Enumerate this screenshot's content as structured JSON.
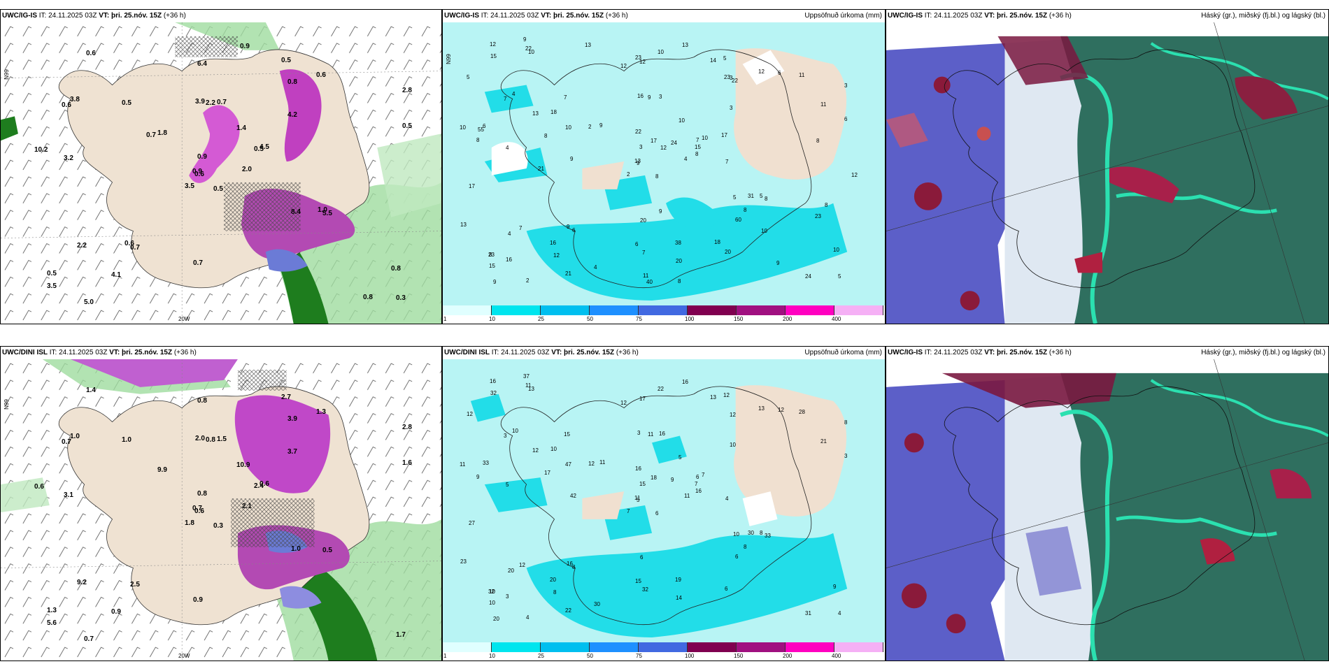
{
  "panels": {
    "top_left": {
      "model": "UWC/IG-IS",
      "it": " IT: 24.11.2025 03Z ",
      "vt": "VT: þri. 25.nóv. 15Z",
      "lead": " (+36 h)",
      "right": ""
    },
    "top_mid": {
      "model": "UWC/IG-IS",
      "it": " IT: 24.11.2025 03Z ",
      "vt": "VT: þri. 25.nóv. 15Z",
      "lead": " (+36 h)",
      "right": "Uppsöfnuð úrkoma (mm)"
    },
    "top_right": {
      "model": "UWC/IG-IS",
      "it": " IT: 24.11.2025 03Z ",
      "vt": "VT: þri. 25.nóv. 15Z",
      "lead": " (+36 h)",
      "right": "Háský (gr.), miðský (fj.bl.) og lágský (bl.)"
    },
    "bot_left": {
      "model": "UWC/DINI ISL",
      "it": " IT: 24.11.2025 03Z ",
      "vt": "VT: þri. 25.nóv. 15Z",
      "lead": " (+36 h)",
      "right": ""
    },
    "bot_mid": {
      "model": "UWC/DINI ISL",
      "it": " IT: 24.11.2025 03Z ",
      "vt": "VT: þri. 25.nóv. 15Z",
      "lead": " (+36 h)",
      "right": "Uppsöfnuð úrkoma (mm)"
    },
    "bot_right": {
      "model": "UWC/IG-IS",
      "it": " IT: 24.11.2025 03Z ",
      "vt": "VT: þri. 25.nóv. 15Z",
      "lead": " (+36 h)",
      "right": "Háský (gr.), miðský (fj.bl.) og lágský (bl.)"
    }
  },
  "axis_labels": {
    "lon": "20W",
    "lat_top": "N99",
    "lat_mid": "N99",
    "lat_bot": "N99"
  },
  "colorbar": {
    "labels": [
      "1",
      "10",
      "25",
      "50",
      "75",
      "100",
      "150",
      "200",
      "400"
    ],
    "colors": [
      "#e0ffff",
      "#00e5ee",
      "#00bfef",
      "#1e90ff",
      "#4169e1",
      "#800050",
      "#a01080",
      "#ff00c0",
      "#f5b0f5"
    ]
  },
  "top_left_values": [
    "0.5",
    "0.6",
    "0.6",
    "0.5",
    "0.5",
    "0.7",
    "0.5",
    "0.7",
    "0.8",
    "2.0",
    "0.6",
    "0.3",
    "3.2",
    "2.8",
    "3.5",
    "4.2",
    "5.0",
    "3.9",
    "1.4",
    "2.2",
    "1.8",
    "3.5",
    "4.1",
    "2.2",
    "4.5",
    "5.5",
    "3.8",
    "6.4",
    "10.2",
    "8.4",
    "0.5",
    "0.9",
    "0.7",
    "0.9",
    "0.5",
    "0.6",
    "0.6",
    "0.8",
    "0.8",
    "1.0",
    "0.9",
    "0.7"
  ],
  "bot_left_values": [
    "0.3",
    "0.7",
    "0.6",
    "1.3",
    "2.4",
    "2.5",
    "2.7",
    "1.5",
    "3.9",
    "2.1",
    "1.4",
    "1.7",
    "3.1",
    "2.8",
    "1.8",
    "3.7",
    "0.7",
    "2.0",
    "10.9",
    "9.2",
    "9.9",
    "5.6",
    "0.9",
    "0.8",
    "0.6",
    "0.5",
    "1.0",
    "0.8",
    "0.6",
    "1.0",
    "1.6",
    "0.7",
    "0.9",
    "0.8",
    "1.0",
    "1.3"
  ],
  "top_mid_values": [
    "8",
    "7",
    "9",
    "8",
    "7",
    "6",
    "5",
    "3",
    "3",
    "4",
    "10",
    "5",
    "4",
    "3",
    "2",
    "3",
    "2",
    "16",
    "10",
    "7",
    "9",
    "15",
    "12",
    "9",
    "10",
    "8",
    "4",
    "12",
    "8",
    "5",
    "6",
    "13",
    "6",
    "3",
    "7",
    "12",
    "9",
    "24",
    "10",
    "5",
    "13",
    "2",
    "8",
    "60",
    "21",
    "10",
    "15",
    "9",
    "7",
    "8",
    "4",
    "11",
    "5",
    "8",
    "20",
    "16",
    "22",
    "12",
    "38",
    "11",
    "10",
    "9",
    "6",
    "18",
    "6",
    "9",
    "14",
    "12",
    "17",
    "13",
    "20",
    "4",
    "31",
    "10",
    "23",
    "15",
    "13",
    "17",
    "22",
    "20",
    "24",
    "16",
    "7",
    "8",
    "11",
    "8",
    "9",
    "9",
    "8",
    "18",
    "23",
    "12",
    "17",
    "10",
    "12",
    "23",
    "55",
    "40",
    "23",
    "22",
    "21",
    "13"
  ],
  "bot_mid_values": [
    "6",
    "3",
    "5",
    "10",
    "6",
    "8",
    "12",
    "16",
    "12",
    "11",
    "13",
    "4",
    "5",
    "8",
    "7",
    "10",
    "4",
    "3",
    "5",
    "12",
    "11",
    "10",
    "8",
    "11",
    "7",
    "33",
    "10",
    "17",
    "9",
    "10",
    "3",
    "11",
    "15",
    "15",
    "15",
    "13",
    "16",
    "31",
    "9",
    "8",
    "16",
    "12",
    "17",
    "6",
    "22",
    "11",
    "7",
    "20",
    "32",
    "16",
    "20",
    "21",
    "12",
    "8",
    "6",
    "20",
    "11",
    "16",
    "19",
    "28",
    "22",
    "42",
    "33",
    "10",
    "12",
    "37",
    "13",
    "12",
    "18",
    "23",
    "6",
    "30",
    "30",
    "47",
    "32",
    "32",
    "12",
    "27",
    "16",
    "14",
    "9",
    "3",
    "4"
  ]
}
